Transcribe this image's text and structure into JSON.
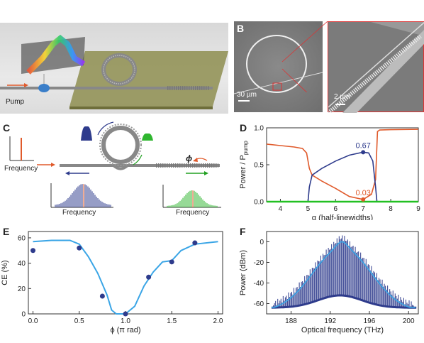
{
  "panels": {
    "A": {
      "letter": "A",
      "pump_label": "Pump"
    },
    "B": {
      "letter": "B",
      "scale_main": "30 µm",
      "scale_zoom": "2 µm"
    },
    "C": {
      "letter": "C",
      "freq_label_1": "Frequency",
      "freq_label_2": "Frequency",
      "freq_label_3": "Frequency",
      "phi_label": "ϕ"
    },
    "D": {
      "letter": "D"
    },
    "E": {
      "letter": "E"
    },
    "F": {
      "letter": "F"
    }
  },
  "chart_data": [
    {
      "id": "D",
      "type": "line",
      "xlabel": "α (half-linewidths)",
      "ylabel": "Power / P",
      "ylabel_sub": "pump",
      "xlim": [
        3.5,
        9
      ],
      "ylim": [
        0,
        1
      ],
      "xticks": [
        "4",
        "5",
        "6",
        "7",
        "8",
        "9"
      ],
      "yticks": [
        "0.0",
        "0.5",
        "1.0"
      ],
      "annotations": [
        {
          "text": "0.67",
          "x": 7.0,
          "y": 0.67,
          "color": "#2e3b8c"
        },
        {
          "text": "0.03",
          "x": 7.0,
          "y": 0.03,
          "color": "#e05a2b"
        }
      ],
      "series": [
        {
          "color": "#e05a2b",
          "x": [
            3.5,
            4.0,
            4.5,
            4.8,
            4.95,
            5.05,
            5.15,
            5.5,
            6.0,
            6.5,
            7.0,
            7.3,
            7.45,
            7.52,
            7.6,
            8.0,
            9.0
          ],
          "y": [
            0.78,
            0.76,
            0.74,
            0.72,
            0.66,
            0.45,
            0.36,
            0.28,
            0.18,
            0.07,
            0.03,
            0.1,
            0.3,
            0.95,
            0.97,
            0.975,
            0.98
          ]
        },
        {
          "color": "#2e3b8c",
          "x": [
            5.0,
            5.05,
            5.15,
            5.5,
            6.0,
            6.5,
            7.0,
            7.2,
            7.35,
            7.45,
            7.5
          ],
          "y": [
            0.0,
            0.2,
            0.36,
            0.45,
            0.55,
            0.63,
            0.67,
            0.66,
            0.55,
            0.2,
            0.0
          ]
        },
        {
          "color": "#22c022",
          "x": [
            3.5,
            9.0
          ],
          "y": [
            0.0,
            0.0
          ]
        }
      ]
    },
    {
      "id": "E",
      "type": "line+scatter",
      "xlabel": "ϕ (π rad)",
      "ylabel": "CE (%)",
      "xlim": [
        -0.05,
        2.05
      ],
      "ylim": [
        0,
        65
      ],
      "xticks": [
        "0.0",
        "0.5",
        "1.0",
        "1.5",
        "2.0"
      ],
      "yticks": [
        "0",
        "20",
        "40",
        "60"
      ],
      "line": {
        "color": "#3aa5e6",
        "x": [
          0.0,
          0.2,
          0.4,
          0.5,
          0.6,
          0.7,
          0.8,
          0.85,
          0.9,
          1.0,
          1.1,
          1.2,
          1.3,
          1.4,
          1.5,
          1.6,
          1.75,
          2.0
        ],
        "y": [
          57,
          58,
          58,
          55,
          45,
          32,
          15,
          3,
          0,
          0,
          6,
          22,
          33,
          41,
          42,
          50,
          55,
          57
        ]
      },
      "points": {
        "color": "#2e3b8c",
        "x": [
          0.0,
          0.5,
          0.75,
          1.0,
          1.25,
          1.5,
          1.75
        ],
        "y": [
          50,
          52,
          14,
          0,
          29,
          41,
          56
        ]
      }
    },
    {
      "id": "F",
      "type": "spectrum",
      "xlabel": "Optical frequency (THz)",
      "ylabel": "Power (dBm)",
      "xlim": [
        185.5,
        201
      ],
      "ylim": [
        -70,
        10
      ],
      "xticks": [
        "188",
        "192",
        "196",
        "200"
      ],
      "yticks": [
        "0",
        "-20",
        "-40",
        "-60"
      ],
      "colors": {
        "lines": "#2e3b8c",
        "envelope": "#3aa5e6"
      }
    }
  ]
}
